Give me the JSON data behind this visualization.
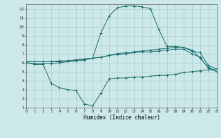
{
  "xlabel": "Humidex (Indice chaleur)",
  "xlim": [
    0,
    23
  ],
  "ylim": [
    1,
    12.5
  ],
  "yticks": [
    1,
    2,
    3,
    4,
    5,
    6,
    7,
    8,
    9,
    10,
    11,
    12
  ],
  "xticks": [
    0,
    1,
    2,
    3,
    4,
    5,
    6,
    7,
    8,
    9,
    10,
    11,
    12,
    13,
    14,
    15,
    16,
    17,
    18,
    19,
    20,
    21,
    22,
    23
  ],
  "bg_color": "#cce8e8",
  "grid_color": "#aacccc",
  "line_color": "#1a6b6b",
  "line1_x": [
    0,
    1,
    2,
    3,
    4,
    5,
    6,
    7,
    8,
    9,
    10,
    11,
    12,
    13,
    14,
    15,
    16,
    17,
    18,
    19,
    20,
    21,
    22,
    23
  ],
  "line1_y": [
    6.0,
    5.8,
    5.8,
    3.7,
    3.2,
    3.0,
    2.9,
    1.4,
    1.2,
    2.6,
    4.2,
    4.3,
    4.3,
    4.4,
    4.4,
    4.5,
    4.6,
    4.6,
    4.7,
    4.9,
    5.0,
    5.1,
    5.2,
    5.3
  ],
  "line2_x": [
    0,
    1,
    2,
    3,
    4,
    5,
    6,
    7,
    8,
    9,
    10,
    11,
    12,
    13,
    14,
    15,
    16,
    17,
    18,
    19,
    20,
    21,
    22,
    23
  ],
  "line2_y": [
    6.1,
    6.1,
    6.1,
    6.1,
    6.2,
    6.2,
    6.3,
    6.4,
    6.5,
    6.6,
    6.8,
    7.0,
    7.1,
    7.2,
    7.3,
    7.4,
    7.5,
    7.6,
    7.7,
    7.7,
    7.3,
    7.1,
    5.7,
    5.3
  ],
  "line3_x": [
    0,
    1,
    2,
    3,
    4,
    5,
    6,
    7,
    8,
    9,
    10,
    11,
    12,
    13,
    14,
    15,
    16,
    17,
    18,
    19,
    20,
    21,
    22,
    23
  ],
  "line3_y": [
    6.1,
    6.1,
    6.1,
    6.1,
    6.1,
    6.2,
    6.3,
    6.4,
    6.5,
    6.6,
    6.8,
    6.9,
    7.0,
    7.1,
    7.2,
    7.2,
    7.3,
    7.4,
    7.5,
    7.5,
    7.0,
    6.6,
    5.4,
    5.0
  ],
  "line4_x": [
    0,
    1,
    2,
    3,
    4,
    5,
    6,
    7,
    8,
    9,
    10,
    11,
    12,
    13,
    14,
    15,
    16,
    17,
    18,
    19,
    20,
    21,
    22,
    23
  ],
  "line4_y": [
    6.0,
    5.9,
    5.9,
    5.9,
    6.0,
    6.1,
    6.2,
    6.3,
    6.5,
    9.3,
    11.2,
    12.1,
    12.3,
    12.3,
    12.2,
    12.0,
    9.7,
    7.8,
    7.8,
    7.7,
    7.4,
    6.5,
    5.5,
    5.0
  ]
}
